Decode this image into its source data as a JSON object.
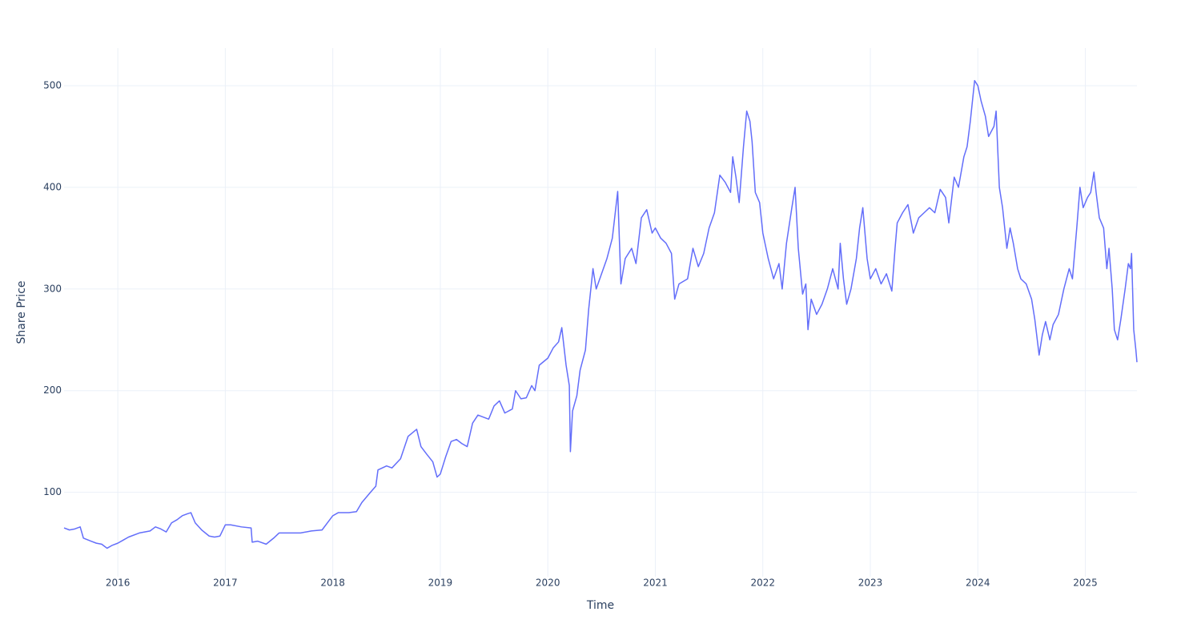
{
  "chart_data": {
    "type": "line",
    "x_label": "Time",
    "y_label": "Share Price",
    "xlim": [
      2015.5,
      2025.48
    ],
    "ylim": [
      17,
      537
    ],
    "xticks": [
      2016,
      2017,
      2018,
      2019,
      2020,
      2021,
      2022,
      2023,
      2024,
      2025
    ],
    "yticks": [
      100,
      200,
      300,
      400,
      500
    ],
    "grid": true,
    "series": [
      {
        "color": "#636efa",
        "x": [
          2015.5,
          2015.55,
          2015.6,
          2015.65,
          2015.68,
          2015.75,
          2015.8,
          2015.85,
          2015.9,
          2015.95,
          2016.0,
          2016.05,
          2016.1,
          2016.2,
          2016.3,
          2016.35,
          2016.4,
          2016.45,
          2016.5,
          2016.55,
          2016.6,
          2016.65,
          2016.68,
          2016.72,
          2016.78,
          2016.85,
          2016.9,
          2016.95,
          2017.0,
          2017.05,
          2017.15,
          2017.24,
          2017.25,
          2017.3,
          2017.38,
          2017.45,
          2017.5,
          2017.6,
          2017.7,
          2017.8,
          2017.9,
          2017.95,
          2018.0,
          2018.05,
          2018.15,
          2018.22,
          2018.27,
          2018.35,
          2018.4,
          2018.42,
          2018.5,
          2018.55,
          2018.63,
          2018.7,
          2018.78,
          2018.82,
          2018.87,
          2018.93,
          2018.97,
          2019.0,
          2019.05,
          2019.1,
          2019.15,
          2019.2,
          2019.25,
          2019.3,
          2019.35,
          2019.45,
          2019.5,
          2019.55,
          2019.6,
          2019.67,
          2019.7,
          2019.75,
          2019.8,
          2019.85,
          2019.88,
          2019.92,
          2020.0,
          2020.05,
          2020.1,
          2020.13,
          2020.17,
          2020.2,
          2020.21,
          2020.23,
          2020.27,
          2020.3,
          2020.35,
          2020.38,
          2020.42,
          2020.45,
          2020.5,
          2020.55,
          2020.6,
          2020.65,
          2020.68,
          2020.72,
          2020.78,
          2020.82,
          2020.87,
          2020.92,
          2020.97,
          2021.0,
          2021.05,
          2021.1,
          2021.15,
          2021.18,
          2021.22,
          2021.3,
          2021.35,
          2021.4,
          2021.45,
          2021.5,
          2021.55,
          2021.6,
          2021.65,
          2021.7,
          2021.72,
          2021.75,
          2021.78,
          2021.82,
          2021.85,
          2021.88,
          2021.9,
          2021.93,
          2021.97,
          2022.0,
          2022.05,
          2022.1,
          2022.15,
          2022.18,
          2022.22,
          2022.27,
          2022.3,
          2022.33,
          2022.37,
          2022.4,
          2022.42,
          2022.45,
          2022.5,
          2022.55,
          2022.6,
          2022.65,
          2022.7,
          2022.72,
          2022.75,
          2022.78,
          2022.82,
          2022.87,
          2022.9,
          2022.93,
          2022.97,
          2023.0,
          2023.05,
          2023.1,
          2023.15,
          2023.2,
          2023.23,
          2023.25,
          2023.3,
          2023.35,
          2023.4,
          2023.45,
          2023.5,
          2023.55,
          2023.6,
          2023.65,
          2023.7,
          2023.73,
          2023.78,
          2023.82,
          2023.87,
          2023.9,
          2023.93,
          2023.97,
          2024.0,
          2024.03,
          2024.07,
          2024.1,
          2024.15,
          2024.17,
          2024.2,
          2024.23,
          2024.27,
          2024.3,
          2024.33,
          2024.37,
          2024.4,
          2024.45,
          2024.5,
          2024.53,
          2024.57,
          2024.6,
          2024.63,
          2024.67,
          2024.7,
          2024.75,
          2024.8,
          2024.85,
          2024.88,
          2024.92,
          2024.95,
          2024.98,
          2025.02,
          2025.05,
          2025.08,
          2025.1,
          2025.13,
          2025.17,
          2025.2,
          2025.22,
          2025.25,
          2025.27,
          2025.3,
          2025.33,
          2025.37,
          2025.4,
          2025.42,
          2025.43,
          2025.45,
          2025.47,
          2025.48
        ],
        "values": [
          65,
          63,
          64,
          66,
          55,
          52,
          50,
          49,
          45,
          48,
          50,
          53,
          56,
          60,
          62,
          66,
          64,
          61,
          70,
          73,
          77,
          79,
          80,
          70,
          63,
          57,
          56,
          57,
          68,
          68,
          66,
          65,
          51,
          52,
          49,
          55,
          60,
          60,
          60,
          62,
          63,
          70,
          77,
          80,
          80,
          81,
          90,
          100,
          106,
          122,
          126,
          124,
          133,
          155,
          162,
          145,
          138,
          130,
          115,
          118,
          135,
          150,
          152,
          148,
          145,
          168,
          176,
          172,
          185,
          190,
          178,
          182,
          200,
          192,
          193,
          205,
          200,
          225,
          232,
          242,
          248,
          262,
          225,
          205,
          140,
          180,
          195,
          220,
          240,
          280,
          320,
          300,
          315,
          330,
          350,
          396,
          305,
          330,
          340,
          325,
          370,
          378,
          355,
          360,
          350,
          345,
          335,
          290,
          305,
          310,
          340,
          322,
          335,
          360,
          375,
          412,
          405,
          395,
          430,
          410,
          385,
          440,
          475,
          465,
          445,
          395,
          385,
          355,
          330,
          310,
          325,
          300,
          345,
          380,
          400,
          340,
          295,
          305,
          260,
          290,
          275,
          285,
          300,
          320,
          300,
          345,
          310,
          285,
          300,
          330,
          360,
          380,
          330,
          310,
          320,
          305,
          315,
          298,
          340,
          365,
          375,
          383,
          355,
          370,
          375,
          380,
          375,
          398,
          390,
          365,
          410,
          400,
          430,
          440,
          465,
          505,
          500,
          485,
          470,
          450,
          460,
          475,
          400,
          380,
          340,
          360,
          345,
          320,
          310,
          305,
          290,
          270,
          235,
          255,
          268,
          250,
          265,
          275,
          300,
          320,
          310,
          360,
          400,
          380,
          390,
          395,
          415,
          395,
          370,
          360,
          320,
          340,
          300,
          260,
          250,
          270,
          300,
          325,
          320,
          335,
          260,
          240,
          228
        ]
      }
    ]
  }
}
